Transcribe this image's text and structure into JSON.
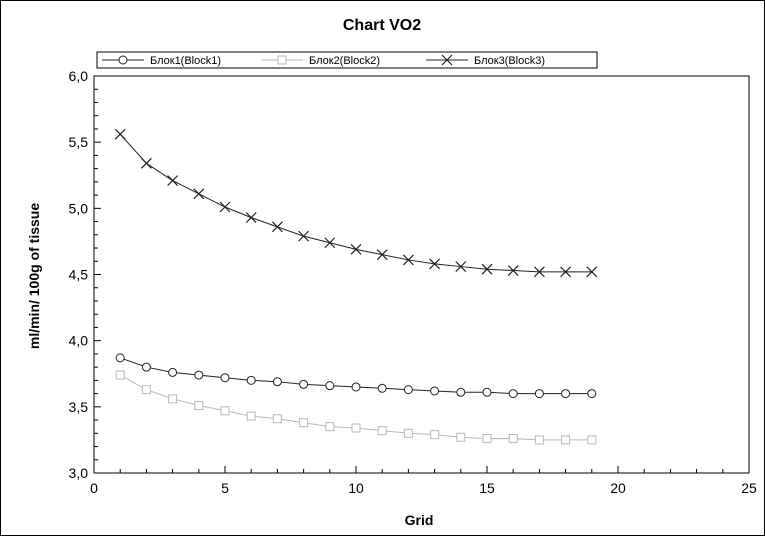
{
  "chart_data": {
    "type": "line",
    "title": "Chart VO2",
    "xlabel": "Grid",
    "ylabel": "ml/min/ 100g of tissue",
    "xlim": [
      0,
      25
    ],
    "ylim": [
      3.0,
      6.0
    ],
    "xticks": [
      0,
      5,
      10,
      15,
      20,
      25
    ],
    "xtick_labels": [
      "0",
      "5",
      "10",
      "15",
      "20",
      "25"
    ],
    "yticks": [
      3.0,
      3.5,
      4.0,
      4.5,
      5.0,
      5.5,
      6.0
    ],
    "ytick_labels": [
      "3,0",
      "3,5",
      "4,0",
      "4,5",
      "5,0",
      "5,5",
      "6,0"
    ],
    "grid": false,
    "legend_position": "top",
    "x": [
      1,
      2,
      3,
      4,
      5,
      6,
      7,
      8,
      9,
      10,
      11,
      12,
      13,
      14,
      15,
      16,
      17,
      18,
      19
    ],
    "series": [
      {
        "name": "Блок1(Block1)",
        "marker": "circle",
        "color": "#222222",
        "values": [
          3.87,
          3.8,
          3.76,
          3.74,
          3.72,
          3.7,
          3.69,
          3.67,
          3.66,
          3.65,
          3.64,
          3.63,
          3.62,
          3.61,
          3.61,
          3.6,
          3.6,
          3.6,
          3.6
        ]
      },
      {
        "name": "Блок2(Block2)",
        "marker": "square",
        "color": "#b8b8b8",
        "values": [
          3.74,
          3.63,
          3.56,
          3.51,
          3.47,
          3.43,
          3.41,
          3.38,
          3.35,
          3.34,
          3.32,
          3.3,
          3.29,
          3.27,
          3.26,
          3.26,
          3.25,
          3.25,
          3.25
        ]
      },
      {
        "name": "Блок3(Block3)",
        "marker": "x",
        "color": "#222222",
        "values": [
          5.56,
          5.34,
          5.21,
          5.11,
          5.01,
          4.93,
          4.86,
          4.79,
          4.74,
          4.69,
          4.65,
          4.61,
          4.58,
          4.56,
          4.54,
          4.53,
          4.52,
          4.52,
          4.52
        ]
      }
    ]
  }
}
